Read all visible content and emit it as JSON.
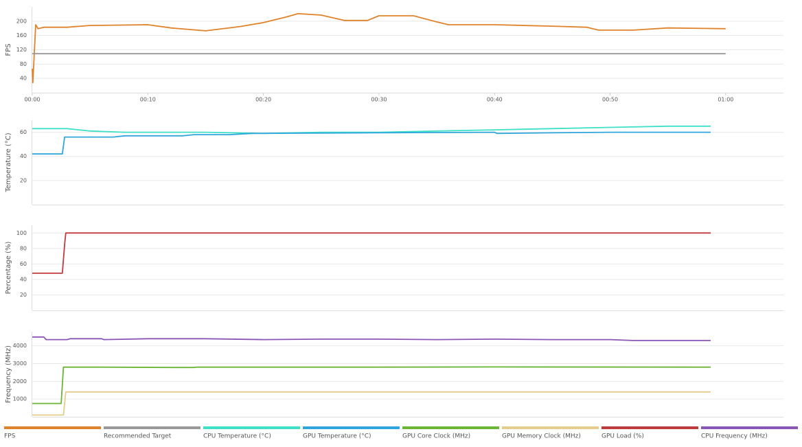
{
  "chart_data": [
    {
      "type": "line",
      "y_label": "FPS",
      "grid": true,
      "xlim": [
        0,
        65
      ],
      "xticks": [
        {
          "value": 0,
          "label": "00:00"
        },
        {
          "value": 10,
          "label": "00:10"
        },
        {
          "value": 20,
          "label": "00:20"
        },
        {
          "value": 30,
          "label": "00:30"
        },
        {
          "value": 40,
          "label": "00:40"
        },
        {
          "value": 50,
          "label": "00:50"
        },
        {
          "value": 60,
          "label": "01:00"
        }
      ],
      "ylim": [
        0,
        240
      ],
      "yticks": [
        40,
        80,
        120,
        160,
        200
      ],
      "series": [
        {
          "name": "FPS",
          "color": "#e0822a",
          "x": [
            0,
            0.05,
            0.3,
            0.5,
            1,
            3,
            5,
            10,
            12,
            15,
            18,
            20,
            22,
            23,
            25,
            27,
            29,
            30,
            33,
            35,
            36,
            40,
            45,
            48,
            49,
            52,
            55,
            60
          ],
          "values": [
            67,
            28,
            190,
            179,
            183,
            183,
            188,
            190,
            181,
            173,
            185,
            196,
            212,
            221,
            217,
            202,
            202,
            215,
            215,
            198,
            190,
            190,
            186,
            183,
            175,
            175,
            181,
            179
          ]
        },
        {
          "name": "Recommended Target",
          "color": "#999999",
          "x": [
            0,
            60
          ],
          "values": [
            109,
            109
          ]
        }
      ]
    },
    {
      "type": "line",
      "y_label": "Temperature (°C)",
      "grid": true,
      "xlim": [
        0,
        65
      ],
      "ylim": [
        0,
        70
      ],
      "yticks": [
        20,
        40,
        60
      ],
      "series": [
        {
          "name": "CPU Temperature (°C)",
          "color": "#3ee0c8",
          "x": [
            0,
            3,
            5,
            8,
            15,
            20,
            25,
            30,
            35,
            40,
            45,
            50,
            55,
            58.7
          ],
          "values": [
            63,
            63,
            61,
            60,
            60,
            59,
            60,
            60,
            61,
            62,
            63,
            64,
            65,
            65
          ]
        },
        {
          "name": "GPU Temperature (°C)",
          "color": "#2ea6dc",
          "x": [
            0,
            2.6,
            2.8,
            7,
            8,
            13,
            14,
            17,
            19,
            30,
            40,
            40.2,
            45,
            50,
            58.7
          ],
          "values": [
            42,
            42,
            56,
            56,
            57,
            57,
            58,
            58,
            59,
            59.5,
            60,
            59,
            59.5,
            60,
            60
          ]
        }
      ]
    },
    {
      "type": "line",
      "y_label": "Percentage (%)",
      "grid": true,
      "xlim": [
        0,
        65
      ],
      "ylim": [
        0,
        110
      ],
      "yticks": [
        20,
        40,
        60,
        80,
        100
      ],
      "series": [
        {
          "name": "GPU Load (%)",
          "color": "#c0393b",
          "x": [
            0,
            2.6,
            2.8,
            2.9,
            58.7
          ],
          "values": [
            48,
            48,
            85,
            100,
            100
          ]
        }
      ]
    },
    {
      "type": "line",
      "y_label": "Frequency (MHz)",
      "grid": true,
      "xlim": [
        0,
        65
      ],
      "ylim": [
        0,
        4800
      ],
      "yticks": [
        1000,
        2000,
        3000,
        4000
      ],
      "series": [
        {
          "name": "GPU Core Clock (MHz)",
          "color": "#6ab533",
          "x": [
            0,
            2.5,
            2.7,
            6,
            12,
            14,
            14.2,
            30,
            40,
            58.7
          ],
          "values": [
            750,
            750,
            2800,
            2800,
            2780,
            2780,
            2800,
            2800,
            2810,
            2800
          ]
        },
        {
          "name": "GPU Memory Clock (MHz)",
          "color": "#e6cc8a",
          "x": [
            0,
            2.7,
            2.9,
            58.7
          ],
          "values": [
            100,
            100,
            1400,
            1400
          ]
        },
        {
          "name": "CPU Frequency (MHz)",
          "color": "#8b55b5",
          "x": [
            0,
            1,
            1.2,
            3,
            3.3,
            6,
            6.2,
            10,
            15,
            20,
            25,
            30,
            35,
            40,
            45,
            50,
            52,
            58.7
          ],
          "values": [
            4500,
            4500,
            4350,
            4350,
            4400,
            4400,
            4350,
            4400,
            4400,
            4350,
            4380,
            4380,
            4350,
            4380,
            4350,
            4350,
            4300,
            4300
          ]
        }
      ]
    }
  ]
}
